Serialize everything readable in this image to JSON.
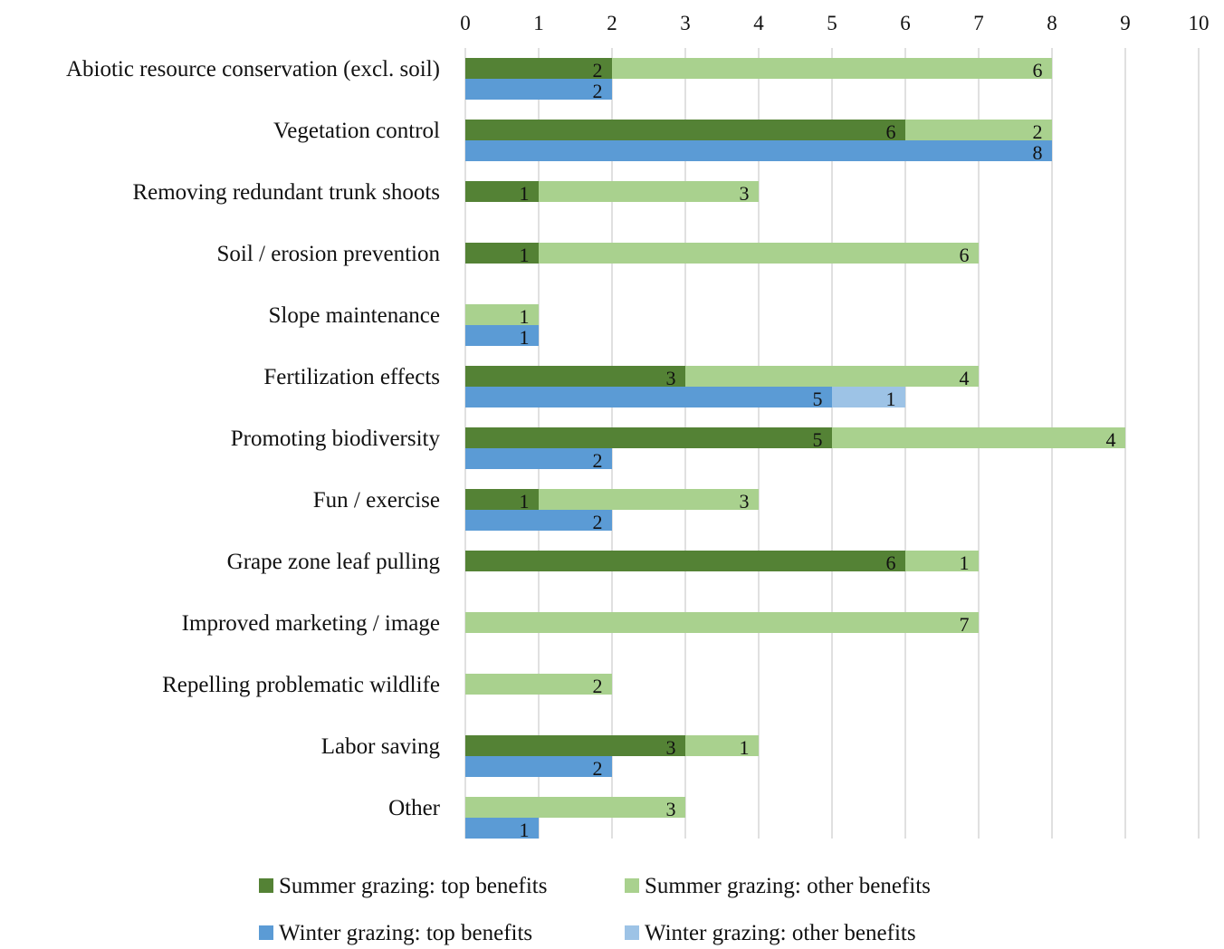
{
  "chart_data": {
    "type": "bar",
    "orientation": "horizontal",
    "stacked": true,
    "categories": [
      "Abiotic resource conservation (excl. soil)",
      "Vegetation control",
      "Removing redundant trunk shoots",
      "Soil / erosion prevention",
      "Slope maintenance",
      "Fertilization effects",
      "Promoting biodiversity",
      "Fun / exercise",
      "Grape zone leaf pulling",
      "Improved marketing / image",
      "Repelling problematic wildlife",
      "Labor saving",
      "Other"
    ],
    "groups": [
      {
        "name": "Summer grazing",
        "series": [
          {
            "name": "Summer grazing: top benefits",
            "color": "#548235",
            "values": [
              2,
              6,
              1,
              1,
              0,
              3,
              5,
              1,
              6,
              0,
              0,
              3,
              0
            ]
          },
          {
            "name": "Summer grazing: other benefits",
            "color": "#a9d18e",
            "values": [
              6,
              2,
              3,
              6,
              1,
              4,
              4,
              3,
              1,
              7,
              2,
              1,
              3
            ]
          }
        ]
      },
      {
        "name": "Winter grazing",
        "series": [
          {
            "name": "Winter grazing: top benefits",
            "color": "#5b9bd5",
            "values": [
              2,
              8,
              0,
              0,
              1,
              5,
              2,
              2,
              0,
              0,
              0,
              2,
              1
            ]
          },
          {
            "name": "Winter grazing: other benefits",
            "color": "#9dc3e6",
            "values": [
              0,
              0,
              0,
              0,
              0,
              1,
              0,
              0,
              0,
              0,
              0,
              0,
              0
            ]
          }
        ]
      }
    ],
    "xlim": [
      0,
      10
    ],
    "xticks": [
      0,
      1,
      2,
      3,
      4,
      5,
      6,
      7,
      8,
      9,
      10
    ],
    "x_axis_position": "top",
    "grid": true,
    "legend_position": "bottom",
    "legend": [
      "Summer grazing: top benefits",
      "Summer grazing: other benefits",
      "Winter grazing: top benefits",
      "Winter grazing: other benefits"
    ]
  }
}
